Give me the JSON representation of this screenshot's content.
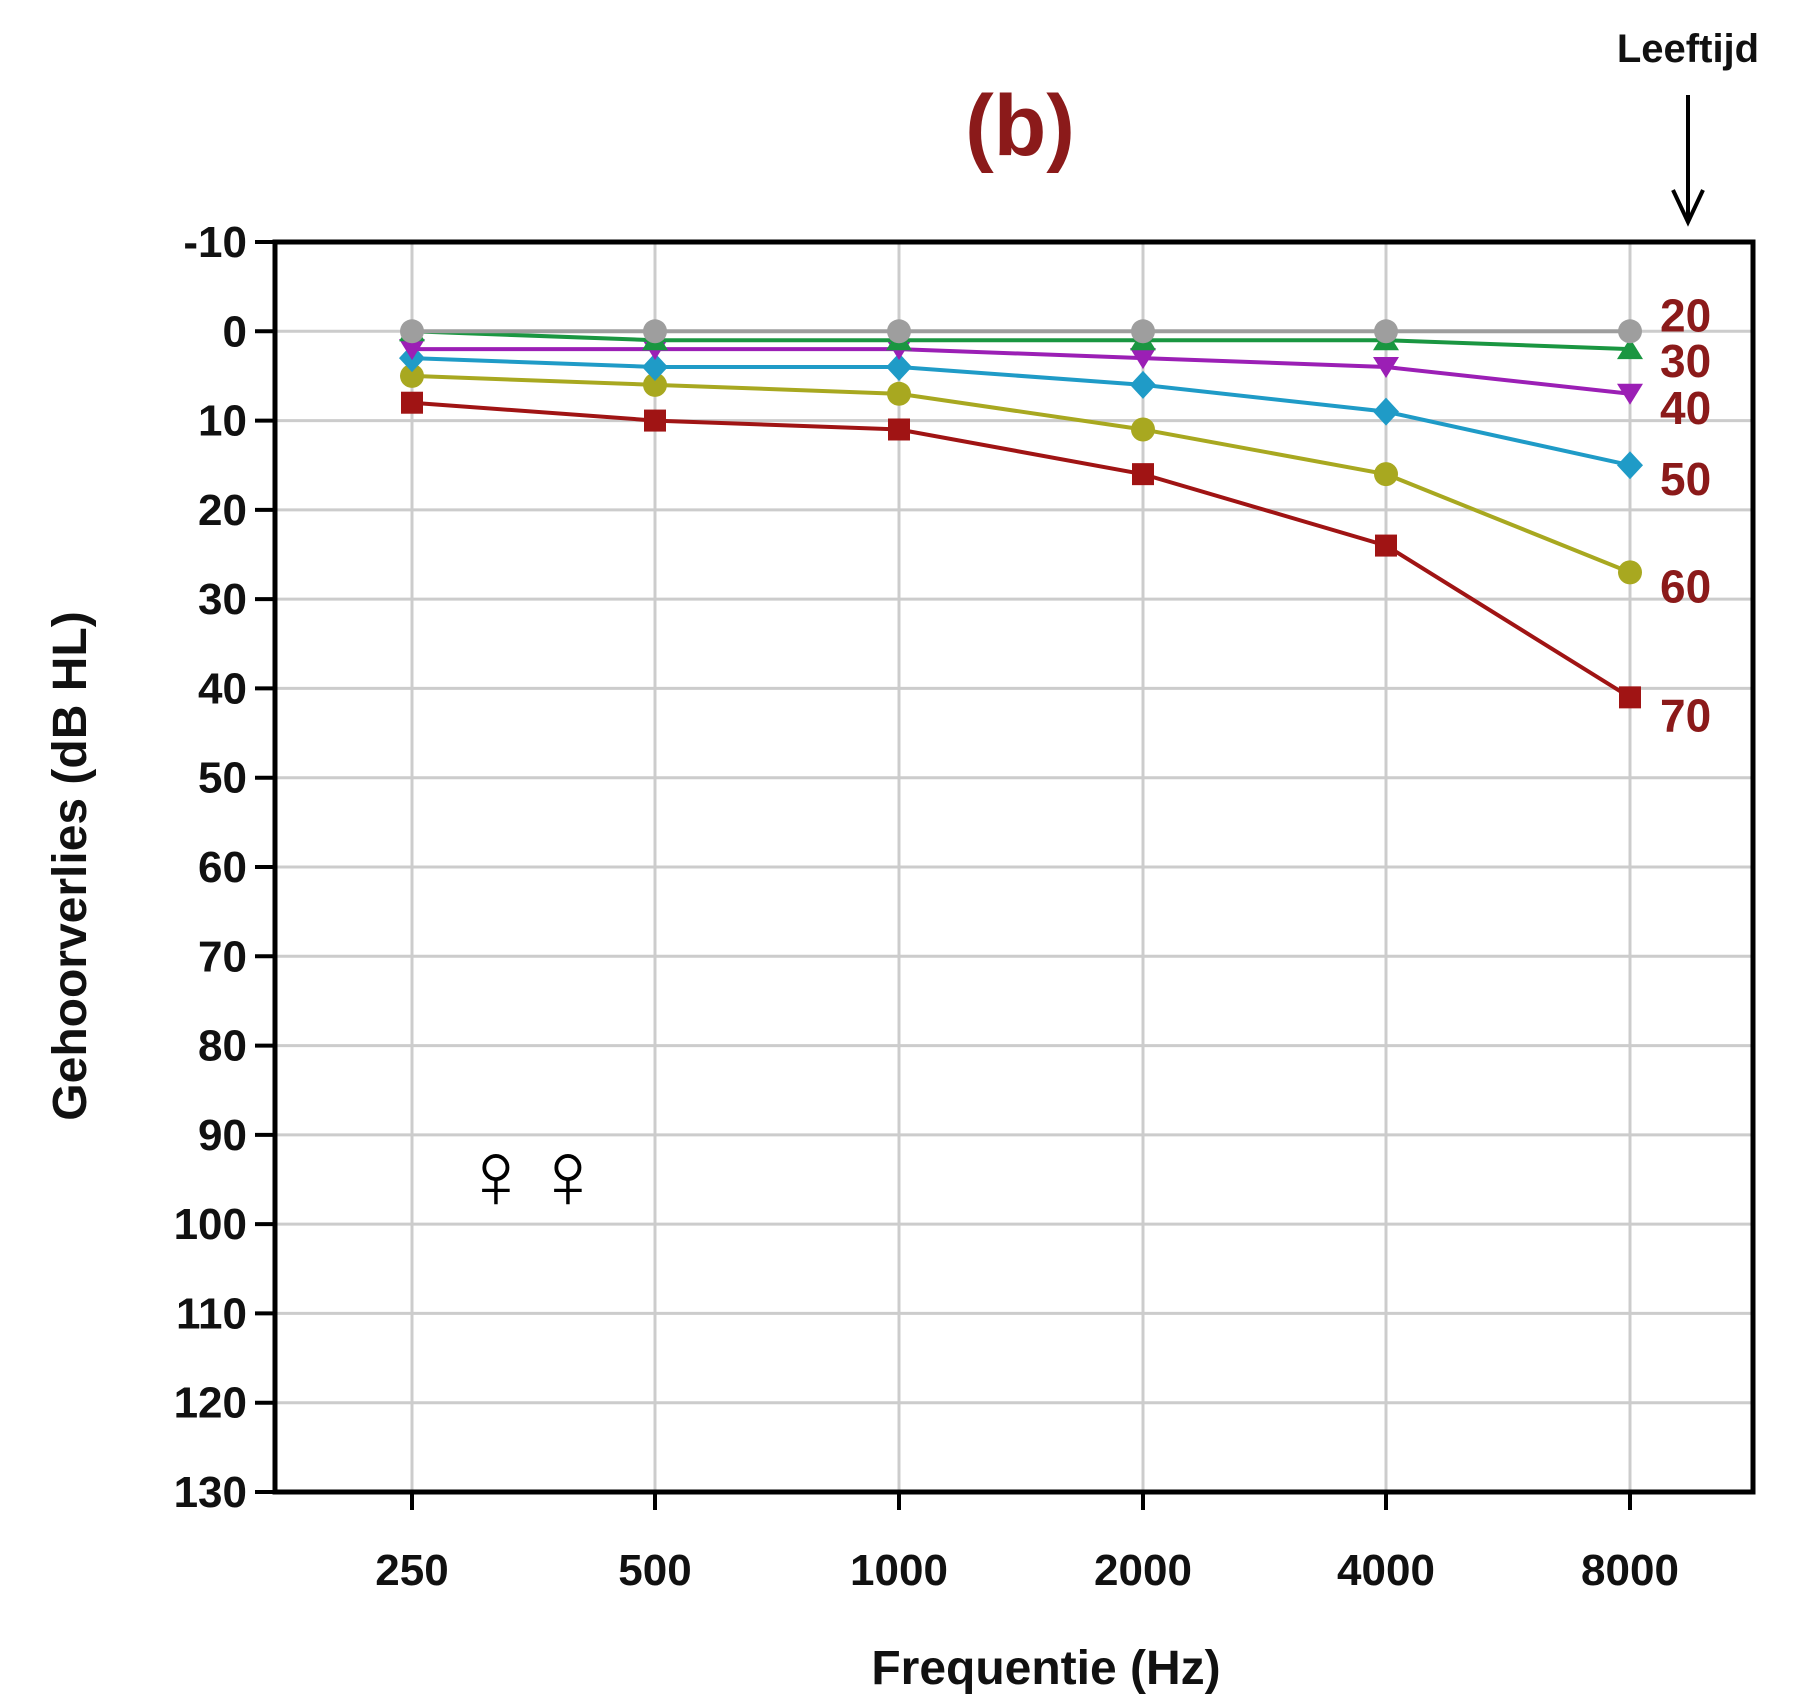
{
  "panel_label": "(b)",
  "age_header": "Leeftijd",
  "symbol": "♀♀",
  "colors": {
    "panel_label": "#8b1a1a",
    "series_label": "#8b1a1a",
    "grid": "#cccccc",
    "axis": "#000000"
  },
  "chart_data": {
    "type": "line",
    "xlabel": "Frequentie (Hz)",
    "ylabel": "Gehoorverlies (dB HL)",
    "x": [
      "250",
      "500",
      "1000",
      "2000",
      "4000",
      "8000"
    ],
    "ylim": [
      -10,
      130
    ],
    "y_inverted": true,
    "y_ticks": [
      "-10",
      "0",
      "10",
      "20",
      "30",
      "40",
      "50",
      "60",
      "70",
      "80",
      "90",
      "100",
      "110",
      "120",
      "130"
    ],
    "grid": true,
    "legend_header": "Leeftijd",
    "legend_placement": "right, at line ends",
    "series": [
      {
        "name": "20",
        "color": "#9e9e9e",
        "marker": "circle",
        "values": [
          0,
          0,
          0,
          0,
          0,
          0
        ]
      },
      {
        "name": "30",
        "color": "#1a9641",
        "marker": "triangle-up",
        "values": [
          0,
          1,
          1,
          1,
          1,
          2
        ]
      },
      {
        "name": "40",
        "color": "#9b1fb5",
        "marker": "triangle-down",
        "values": [
          2,
          2,
          2,
          3,
          4,
          7
        ]
      },
      {
        "name": "50",
        "color": "#1f9bc7",
        "marker": "diamond",
        "values": [
          3,
          4,
          4,
          6,
          9,
          15
        ]
      },
      {
        "name": "60",
        "color": "#a8a820",
        "marker": "circle",
        "values": [
          5,
          6,
          7,
          11,
          16,
          27
        ]
      },
      {
        "name": "70",
        "color": "#a01414",
        "marker": "square",
        "values": [
          8,
          10,
          11,
          16,
          24,
          41
        ]
      }
    ]
  }
}
